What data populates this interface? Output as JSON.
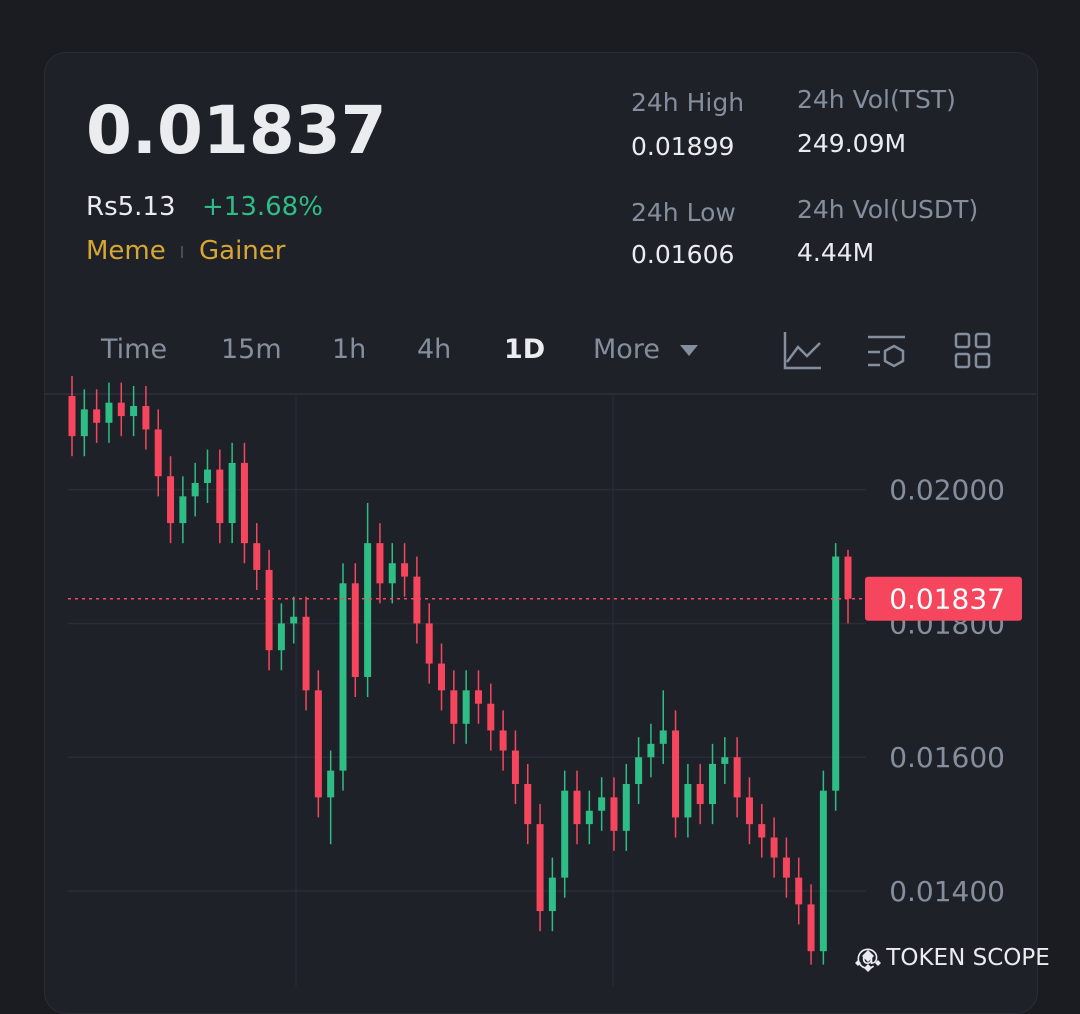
{
  "header": {
    "price": "0.01837",
    "fiat_price": "Rs5.13",
    "change": "+13.68%",
    "tags": [
      "Meme",
      "Gainer"
    ],
    "stats": [
      {
        "label": "24h High",
        "value": "0.01899"
      },
      {
        "label": "24h Vol(TST)",
        "value": "249.09M"
      },
      {
        "label": "24h Low",
        "value": "0.01606"
      },
      {
        "label": "24h Vol(USDT)",
        "value": "4.44M"
      }
    ]
  },
  "tabs": [
    "Time",
    "15m",
    "1h",
    "4h",
    "1D",
    "More"
  ],
  "watermark": "@ TOKEN SCOPE",
  "chart_data": {
    "type": "candlestick",
    "up_color": "#2ebd85",
    "down_color": "#f6465d",
    "ylim": [
      0.01258,
      0.02143
    ],
    "yticks": [
      {
        "value": 0.02,
        "label": "0.02000"
      },
      {
        "value": 0.018,
        "label": "0.01800"
      },
      {
        "value": 0.016,
        "label": "0.01600"
      },
      {
        "value": 0.014,
        "label": "0.01400"
      }
    ],
    "grid": true,
    "last_price": 0.01837,
    "open": [
      0.0214,
      0.0208,
      0.0212,
      0.021,
      0.0213,
      0.0211,
      0.02125,
      0.0209,
      0.0202,
      0.0195,
      0.0199,
      0.0201,
      0.0203,
      0.0195,
      0.0204,
      0.0192,
      0.0188,
      0.0176,
      0.018,
      0.0181,
      0.017,
      0.0154,
      0.0158,
      0.0186,
      0.0172,
      0.0192,
      0.0186,
      0.0189,
      0.0187,
      0.018,
      0.0174,
      0.017,
      0.0165,
      0.017,
      0.0168,
      0.0164,
      0.0161,
      0.0156,
      0.015,
      0.0137,
      0.0142,
      0.0155,
      0.015,
      0.0152,
      0.0154,
      0.0149,
      0.0156,
      0.016,
      0.0162,
      0.0164,
      0.0151,
      0.0156,
      0.0153,
      0.0159,
      0.016,
      0.0154,
      0.015,
      0.0148,
      0.0145,
      0.0142,
      0.0138,
      0.0131,
      0.0155,
      0.019
    ],
    "high": [
      0.0217,
      0.0215,
      0.0215,
      0.0216,
      0.0216,
      0.02155,
      0.02155,
      0.0212,
      0.0205,
      0.0202,
      0.0204,
      0.0206,
      0.0206,
      0.0207,
      0.0207,
      0.0195,
      0.0191,
      0.0183,
      0.0184,
      0.0184,
      0.0173,
      0.0161,
      0.0189,
      0.0189,
      0.0198,
      0.0195,
      0.0192,
      0.0192,
      0.019,
      0.0183,
      0.0177,
      0.0173,
      0.0173,
      0.0173,
      0.0171,
      0.0167,
      0.0164,
      0.0159,
      0.0153,
      0.0145,
      0.0158,
      0.0158,
      0.0155,
      0.0157,
      0.0157,
      0.0159,
      0.0163,
      0.0165,
      0.017,
      0.0167,
      0.0159,
      0.0159,
      0.0162,
      0.0163,
      0.0163,
      0.0157,
      0.0153,
      0.0151,
      0.0148,
      0.0145,
      0.0141,
      0.0158,
      0.0192,
      0.0191
    ],
    "low": [
      0.0205,
      0.0205,
      0.0207,
      0.0207,
      0.0208,
      0.0208,
      0.0206,
      0.0199,
      0.0192,
      0.0192,
      0.0196,
      0.0198,
      0.0192,
      0.0192,
      0.0189,
      0.0185,
      0.0173,
      0.0173,
      0.0177,
      0.0167,
      0.0151,
      0.0147,
      0.0155,
      0.0169,
      0.0169,
      0.0183,
      0.0183,
      0.0184,
      0.0177,
      0.0171,
      0.0167,
      0.0162,
      0.0162,
      0.0165,
      0.0161,
      0.0158,
      0.0153,
      0.0147,
      0.0134,
      0.0134,
      0.0139,
      0.0147,
      0.0147,
      0.0149,
      0.0146,
      0.0146,
      0.0153,
      0.0157,
      0.0159,
      0.0148,
      0.0148,
      0.015,
      0.015,
      0.0156,
      0.0151,
      0.0147,
      0.0145,
      0.0142,
      0.0139,
      0.0135,
      0.0129,
      0.0129,
      0.0152,
      0.018
    ],
    "close": [
      0.0208,
      0.0212,
      0.021,
      0.0213,
      0.0211,
      0.02125,
      0.0209,
      0.0202,
      0.0195,
      0.0199,
      0.0201,
      0.0203,
      0.0195,
      0.0204,
      0.0192,
      0.0188,
      0.0176,
      0.018,
      0.0181,
      0.017,
      0.0154,
      0.0158,
      0.0186,
      0.0172,
      0.0192,
      0.0186,
      0.0189,
      0.0187,
      0.018,
      0.0174,
      0.017,
      0.0165,
      0.017,
      0.0168,
      0.0164,
      0.0161,
      0.0156,
      0.015,
      0.0137,
      0.0142,
      0.0155,
      0.015,
      0.0152,
      0.0154,
      0.0149,
      0.0156,
      0.016,
      0.0162,
      0.0164,
      0.0151,
      0.0156,
      0.0153,
      0.0159,
      0.016,
      0.0154,
      0.015,
      0.0148,
      0.0145,
      0.0142,
      0.0138,
      0.0131,
      0.0155,
      0.019,
      0.01837
    ]
  }
}
